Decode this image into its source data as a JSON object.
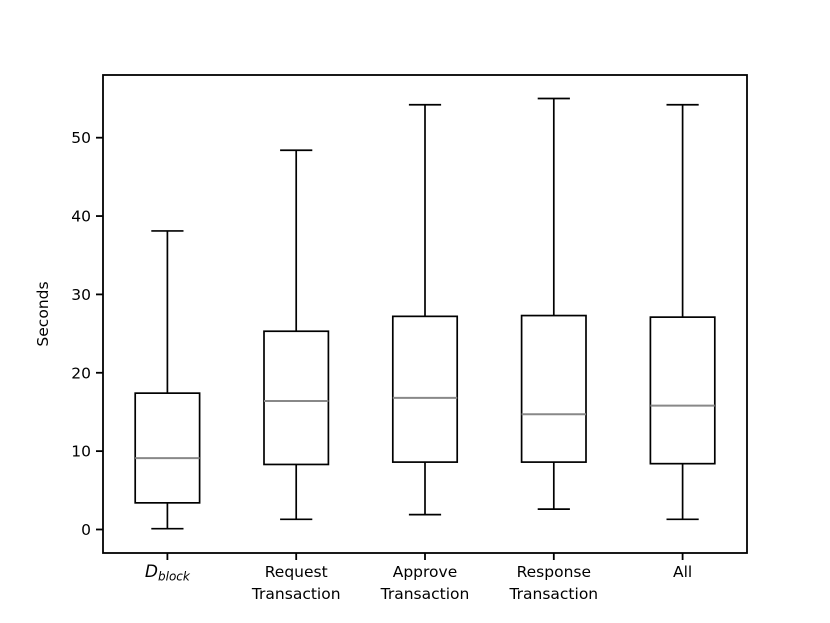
{
  "chart_data": {
    "type": "boxplot",
    "title": "",
    "xlabel": "",
    "ylabel": "Seconds",
    "ylim": [
      -3,
      58
    ],
    "yticks": [
      0,
      10,
      20,
      30,
      40,
      50
    ],
    "grid": false,
    "legend": false,
    "box_width": 0.5,
    "categories": [
      "D_{block}",
      "Request\nTransaction",
      "Approve\nTransaction",
      "Response\nTransaction",
      "All"
    ],
    "series": [
      {
        "name": "D_block",
        "whislo": 0.1,
        "q1": 3.4,
        "med": 9.1,
        "q3": 17.4,
        "whishi": 38.1
      },
      {
        "name": "Request Transaction",
        "whislo": 1.3,
        "q1": 8.3,
        "med": 16.4,
        "q3": 25.3,
        "whishi": 48.4
      },
      {
        "name": "Approve Transaction",
        "whislo": 1.9,
        "q1": 8.6,
        "med": 16.8,
        "q3": 27.2,
        "whishi": 54.2
      },
      {
        "name": "Response Transaction",
        "whislo": 2.6,
        "q1": 8.6,
        "med": 14.7,
        "q3": 27.3,
        "whishi": 55.0
      },
      {
        "name": "All",
        "whislo": 1.3,
        "q1": 8.4,
        "med": 15.8,
        "q3": 27.1,
        "whishi": 54.2
      }
    ],
    "colors": {
      "box_stroke": "#000000",
      "whisker": "#000000",
      "median": "#888888",
      "axis": "#000000",
      "background": "#ffffff"
    }
  }
}
